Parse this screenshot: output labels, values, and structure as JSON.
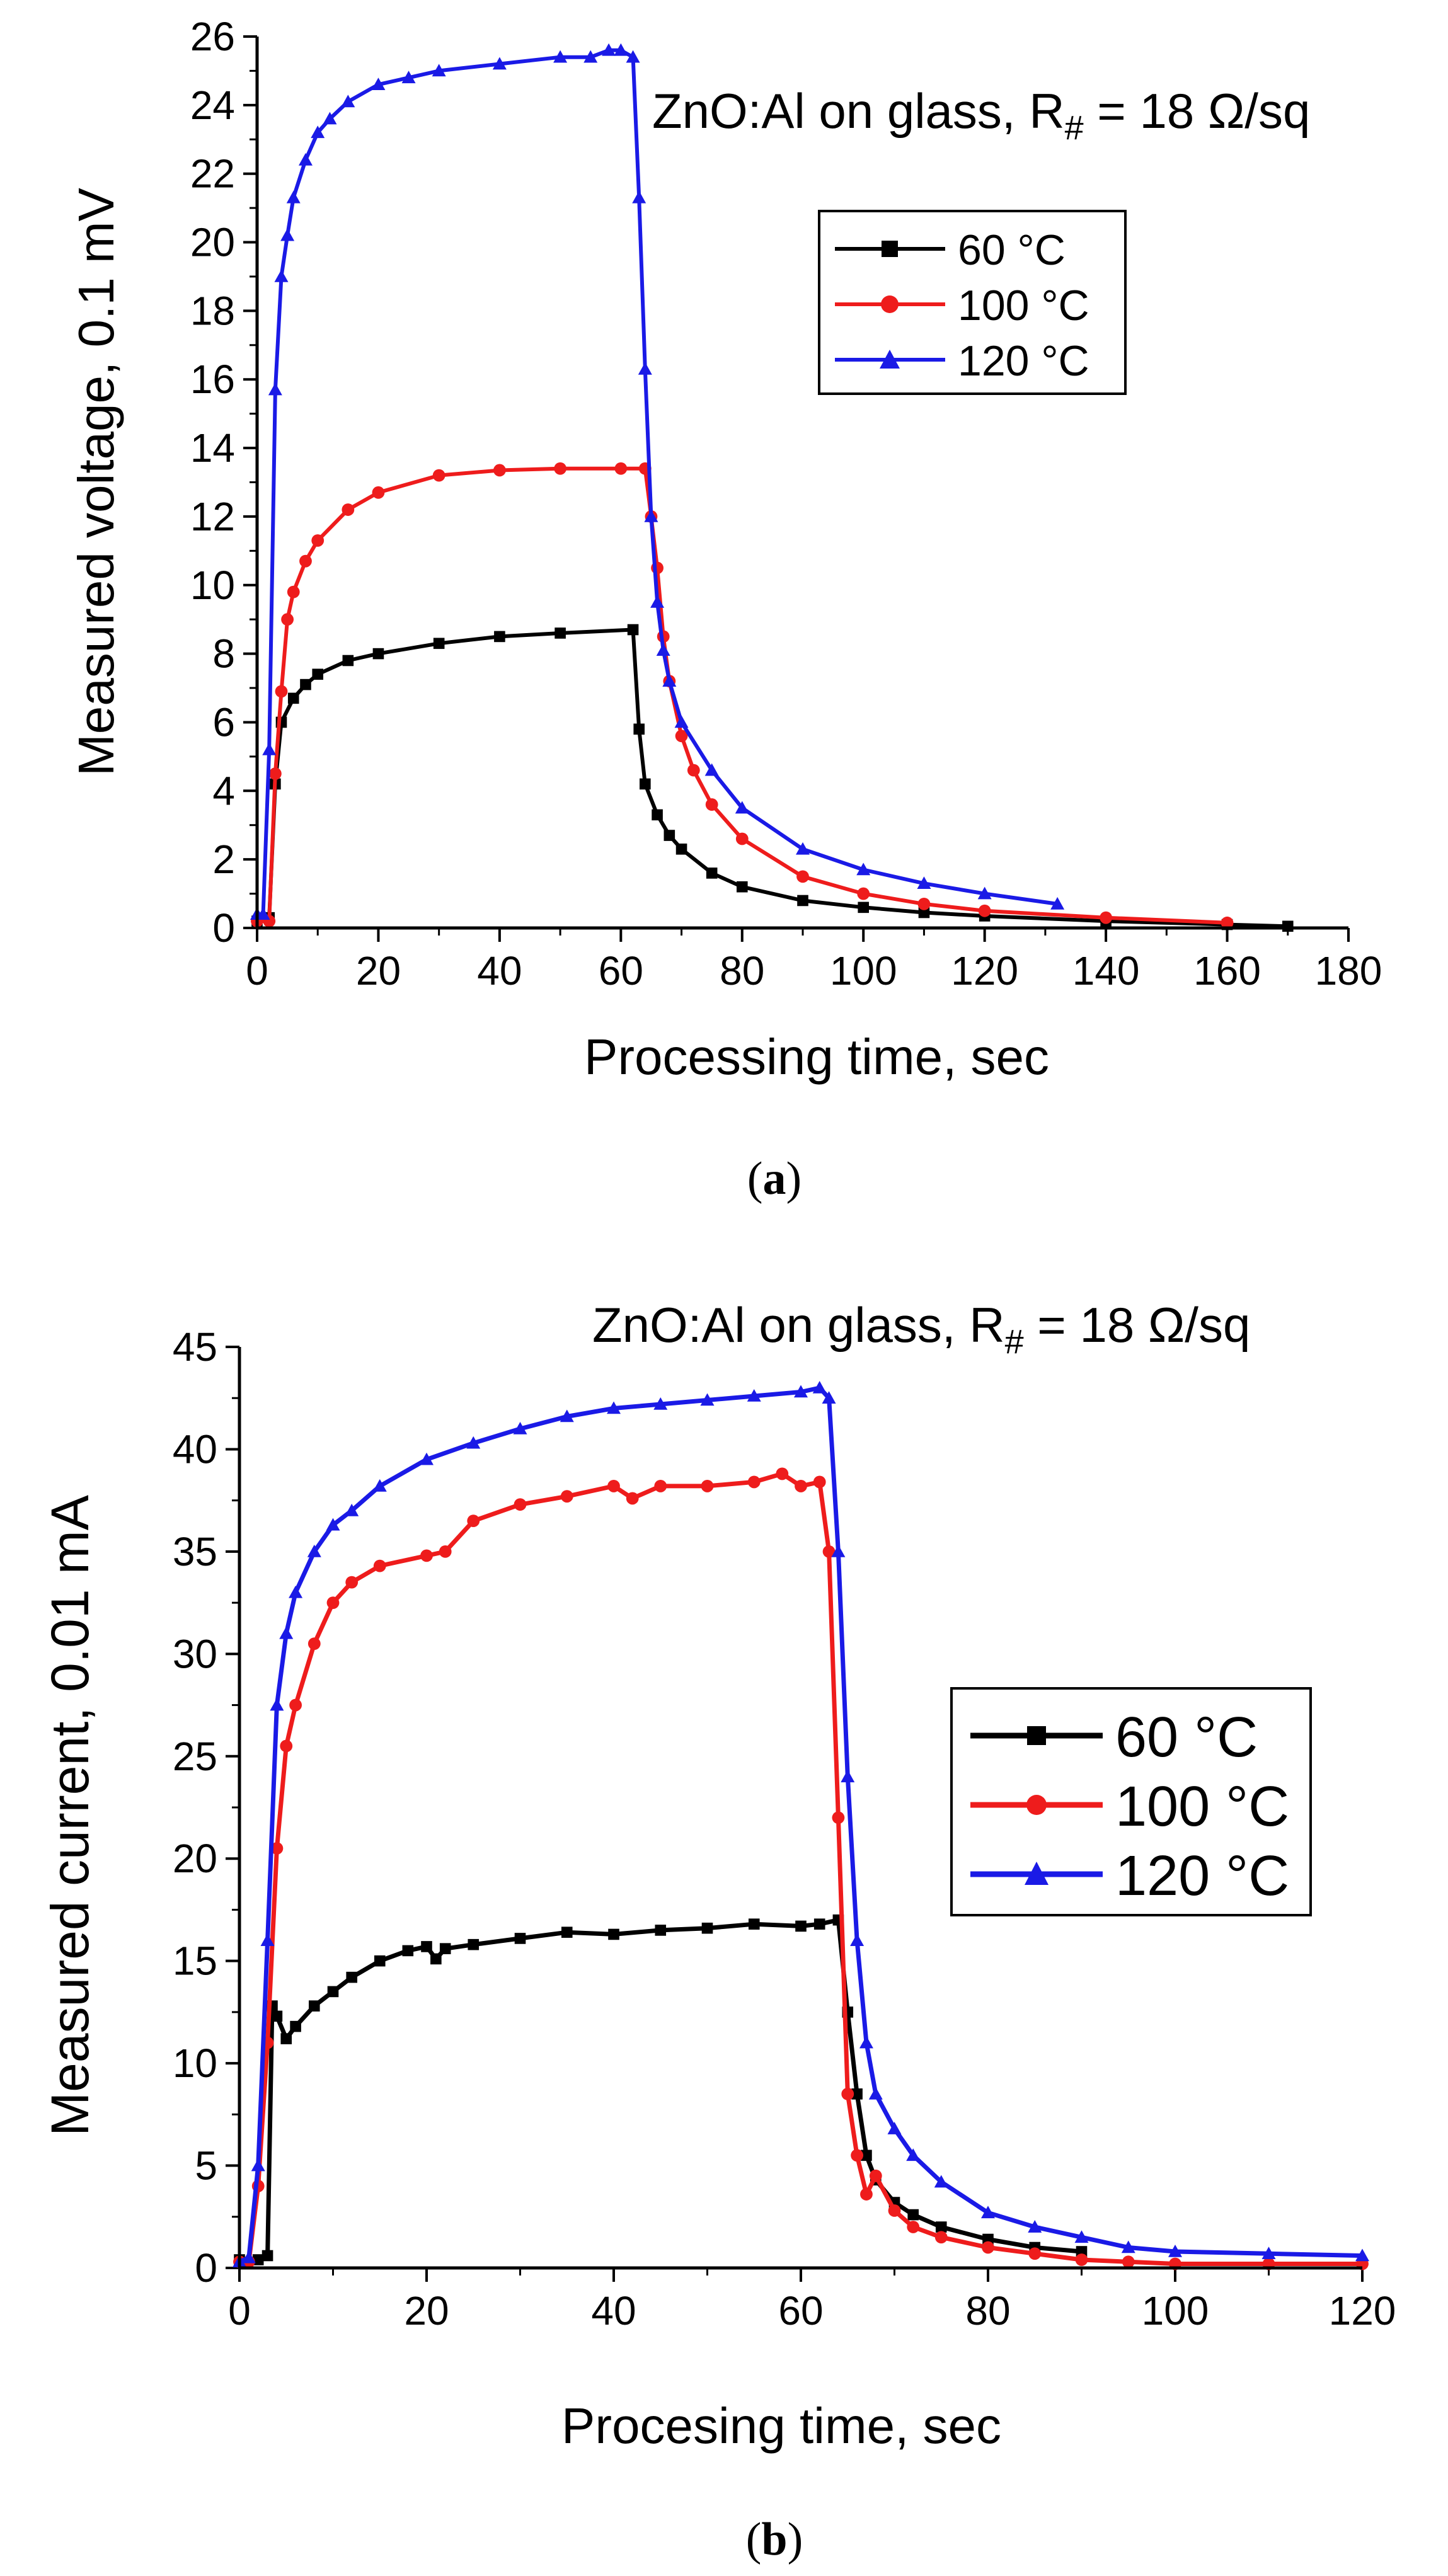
{
  "chart_data": [
    {
      "type": "line",
      "panel_label": "a",
      "annotation": {
        "prefix": "ZnO:Al on glass, R",
        "subscript": "#",
        "suffix": " = 18 Ω/sq"
      },
      "xlabel": "Processing time, sec",
      "ylabel": "Measured voltage, 0.1 mV",
      "xlim": [
        0,
        180
      ],
      "ylim": [
        0,
        26
      ],
      "xticks": [
        0,
        20,
        40,
        60,
        80,
        100,
        120,
        140,
        160,
        180
      ],
      "yticks": [
        0,
        2,
        4,
        6,
        8,
        10,
        12,
        14,
        16,
        18,
        20,
        22,
        24,
        26
      ],
      "legend_position": "upper-right",
      "series": [
        {
          "name": "60 °C",
          "color": "#000000",
          "marker": "square",
          "x": [
            0,
            2,
            3,
            4,
            6,
            8,
            10,
            15,
            20,
            30,
            40,
            50,
            62,
            63,
            64,
            66,
            68,
            70,
            75,
            80,
            90,
            100,
            110,
            120,
            140,
            160,
            170
          ],
          "y": [
            0.2,
            0.3,
            4.2,
            6.0,
            6.7,
            7.1,
            7.4,
            7.8,
            8.0,
            8.3,
            8.5,
            8.6,
            8.7,
            5.8,
            4.2,
            3.3,
            2.7,
            2.3,
            1.6,
            1.2,
            0.8,
            0.6,
            0.45,
            0.35,
            0.2,
            0.1,
            0.05
          ]
        },
        {
          "name": "100 °C",
          "color": "#ee1c1c",
          "marker": "circle",
          "x": [
            0,
            2,
            3,
            4,
            5,
            6,
            8,
            10,
            15,
            20,
            30,
            40,
            50,
            60,
            64,
            65,
            66,
            67,
            68,
            70,
            72,
            75,
            80,
            90,
            100,
            110,
            120,
            140,
            160
          ],
          "y": [
            0.2,
            0.2,
            4.5,
            6.9,
            9.0,
            9.8,
            10.7,
            11.3,
            12.2,
            12.7,
            13.2,
            13.35,
            13.4,
            13.4,
            13.4,
            12.0,
            10.5,
            8.5,
            7.2,
            5.6,
            4.6,
            3.6,
            2.6,
            1.5,
            1.0,
            0.7,
            0.5,
            0.3,
            0.15
          ]
        },
        {
          "name": "120 °C",
          "color": "#1a1ae6",
          "marker": "triangle",
          "x": [
            0,
            1,
            2,
            3,
            4,
            5,
            6,
            8,
            10,
            12,
            15,
            20,
            25,
            30,
            40,
            50,
            55,
            58,
            60,
            62,
            63,
            64,
            65,
            66,
            67,
            68,
            70,
            75,
            80,
            90,
            100,
            110,
            120,
            132
          ],
          "y": [
            0.4,
            0.4,
            5.2,
            15.7,
            19.0,
            20.2,
            21.3,
            22.4,
            23.2,
            23.6,
            24.1,
            24.6,
            24.8,
            25.0,
            25.2,
            25.4,
            25.4,
            25.6,
            25.6,
            25.4,
            21.3,
            16.3,
            12.0,
            9.5,
            8.1,
            7.2,
            6.0,
            4.6,
            3.5,
            2.3,
            1.7,
            1.3,
            1.0,
            0.7
          ]
        }
      ]
    },
    {
      "type": "line",
      "panel_label": "b",
      "annotation": {
        "prefix": "ZnO:Al on glass, R",
        "subscript": "#",
        "suffix": " = 18 Ω/sq"
      },
      "xlabel": "Procesing time, sec",
      "ylabel": "Measured current, 0.01 mA",
      "xlim": [
        0,
        120
      ],
      "ylim": [
        0,
        45
      ],
      "xticks": [
        0,
        20,
        40,
        60,
        80,
        100,
        120
      ],
      "yticks": [
        0,
        5,
        10,
        15,
        20,
        25,
        30,
        35,
        40,
        45
      ],
      "legend_position": "right",
      "series": [
        {
          "name": "60 °C",
          "color": "#000000",
          "marker": "square",
          "x": [
            0,
            2,
            3,
            3.5,
            4,
            5,
            6,
            8,
            10,
            12,
            15,
            18,
            20,
            21,
            22,
            25,
            30,
            35,
            40,
            45,
            50,
            55,
            60,
            62,
            64,
            65,
            66,
            67,
            68,
            70,
            72,
            75,
            80,
            85,
            90
          ],
          "y": [
            0.4,
            0.4,
            0.6,
            12.8,
            12.3,
            11.2,
            11.8,
            12.8,
            13.5,
            14.2,
            15.0,
            15.5,
            15.7,
            15.1,
            15.6,
            15.8,
            16.1,
            16.4,
            16.3,
            16.5,
            16.6,
            16.8,
            16.7,
            16.8,
            17.0,
            12.5,
            8.5,
            5.5,
            4.3,
            3.2,
            2.6,
            2.0,
            1.4,
            1.0,
            0.8
          ]
        },
        {
          "name": "100 °C",
          "color": "#ee1c1c",
          "marker": "circle",
          "x": [
            0,
            1,
            2,
            3,
            4,
            5,
            6,
            8,
            10,
            12,
            15,
            20,
            22,
            25,
            30,
            35,
            40,
            42,
            45,
            50,
            55,
            58,
            60,
            62,
            63,
            64,
            65,
            66,
            67,
            68,
            70,
            72,
            75,
            80,
            85,
            90,
            95,
            100,
            110,
            120
          ],
          "y": [
            0.3,
            0.3,
            4.0,
            11.0,
            20.5,
            25.5,
            27.5,
            30.5,
            32.5,
            33.5,
            34.3,
            34.8,
            35.0,
            36.5,
            37.3,
            37.7,
            38.2,
            37.6,
            38.2,
            38.2,
            38.4,
            38.8,
            38.2,
            38.4,
            35.0,
            22.0,
            8.5,
            5.5,
            3.6,
            4.5,
            2.8,
            2.0,
            1.5,
            1.0,
            0.7,
            0.4,
            0.3,
            0.2,
            0.2,
            0.2
          ]
        },
        {
          "name": "120 °C",
          "color": "#1a1ae6",
          "marker": "triangle",
          "x": [
            0,
            1,
            2,
            3,
            4,
            5,
            6,
            8,
            10,
            12,
            15,
            20,
            25,
            30,
            35,
            40,
            45,
            50,
            55,
            60,
            62,
            63,
            64,
            65,
            66,
            67,
            68,
            70,
            72,
            75,
            80,
            85,
            90,
            95,
            100,
            110,
            120
          ],
          "y": [
            0.3,
            0.5,
            5.0,
            16.0,
            27.5,
            31.0,
            33.0,
            35.0,
            36.3,
            37.0,
            38.2,
            39.5,
            40.3,
            41.0,
            41.6,
            42.0,
            42.2,
            42.4,
            42.6,
            42.8,
            43.0,
            42.5,
            35.0,
            24.0,
            16.0,
            11.0,
            8.5,
            6.8,
            5.5,
            4.2,
            2.7,
            2.0,
            1.5,
            1.0,
            0.8,
            0.7,
            0.6
          ]
        }
      ]
    }
  ]
}
